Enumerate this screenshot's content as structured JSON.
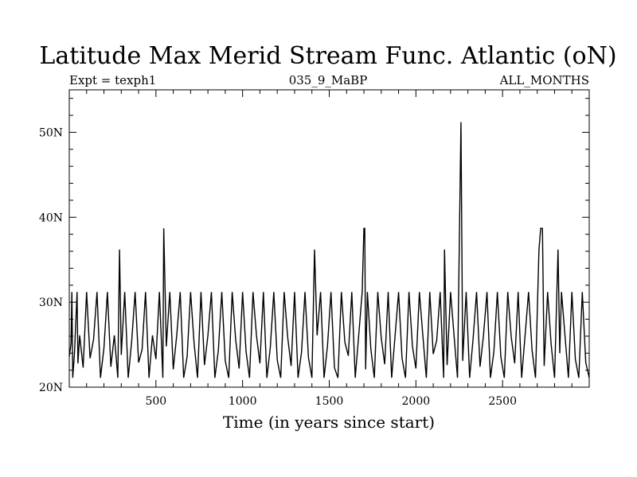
{
  "chart_data": {
    "type": "line",
    "title": "Latitude Max Merid Stream Func. Atlantic (oN)",
    "subtitle_left": "Expt = texph1",
    "subtitle_center": "035_9_MaBP",
    "subtitle_right": "ALL_MONTHS",
    "xlabel": "Time (in years since start)",
    "ylabel": "",
    "xlim": [
      0,
      3000
    ],
    "ylim": [
      20,
      55
    ],
    "xticks": [
      500,
      1000,
      1500,
      2000,
      2500
    ],
    "xtick_labels": [
      "500",
      "1000",
      "1500",
      "2000",
      "2500"
    ],
    "yticks": [
      20,
      30,
      40,
      50
    ],
    "ytick_labels": [
      "20N",
      "30N",
      "40N",
      "50N"
    ],
    "grid": false,
    "line_color": "#000000",
    "series": [
      {
        "name": "",
        "x": [
          0,
          10,
          15,
          20,
          30,
          45,
          50,
          60,
          80,
          100,
          120,
          140,
          160,
          180,
          200,
          220,
          240,
          260,
          280,
          290,
          300,
          320,
          340,
          360,
          380,
          400,
          420,
          440,
          460,
          480,
          500,
          520,
          540,
          545,
          560,
          580,
          600,
          620,
          640,
          660,
          680,
          700,
          720,
          740,
          760,
          780,
          800,
          820,
          840,
          860,
          880,
          900,
          920,
          940,
          960,
          980,
          1000,
          1020,
          1040,
          1060,
          1080,
          1100,
          1120,
          1140,
          1160,
          1180,
          1200,
          1220,
          1240,
          1260,
          1280,
          1300,
          1320,
          1340,
          1360,
          1380,
          1400,
          1415,
          1430,
          1450,
          1470,
          1490,
          1510,
          1530,
          1550,
          1570,
          1590,
          1610,
          1630,
          1650,
          1670,
          1690,
          1700,
          1705,
          1710,
          1720,
          1740,
          1760,
          1780,
          1800,
          1820,
          1840,
          1860,
          1880,
          1900,
          1920,
          1940,
          1960,
          1980,
          2000,
          2020,
          2040,
          2060,
          2080,
          2100,
          2120,
          2140,
          2160,
          2165,
          2180,
          2200,
          2220,
          2240,
          2250,
          2260,
          2270,
          2290,
          2310,
          2330,
          2350,
          2370,
          2390,
          2410,
          2430,
          2450,
          2470,
          2490,
          2510,
          2530,
          2550,
          2570,
          2590,
          2610,
          2630,
          2650,
          2670,
          2690,
          2710,
          2720,
          2730,
          2740,
          2760,
          2780,
          2800,
          2820,
          2830,
          2840,
          2860,
          2880,
          2900,
          2920,
          2940,
          2960,
          2980,
          3000
        ],
        "values": [
          23.6,
          25.1,
          31.2,
          21.1,
          24.0,
          31.2,
          22.8,
          26.1,
          22.3,
          31.2,
          23.4,
          25.6,
          31.2,
          21.1,
          24.6,
          31.2,
          22.4,
          26.1,
          21.1,
          36.2,
          23.8,
          31.2,
          21.1,
          25.4,
          31.2,
          22.9,
          24.4,
          31.2,
          21.1,
          26.1,
          23.3,
          31.2,
          21.1,
          38.7,
          24.8,
          31.2,
          22.1,
          26.1,
          31.2,
          21.1,
          23.6,
          31.2,
          25.2,
          21.1,
          31.2,
          22.6,
          26.1,
          31.2,
          21.1,
          24.3,
          31.2,
          23.1,
          21.1,
          31.2,
          25.6,
          22.2,
          31.2,
          24.2,
          21.1,
          31.2,
          26.1,
          22.8,
          31.2,
          21.1,
          24.7,
          31.2,
          23.2,
          21.1,
          31.2,
          25.9,
          22.5,
          31.2,
          21.1,
          24.1,
          31.2,
          23.5,
          21.1,
          36.2,
          26.1,
          31.2,
          21.1,
          24.9,
          31.2,
          22.3,
          21.1,
          31.2,
          25.3,
          23.7,
          31.2,
          21.1,
          26.1,
          31.2,
          38.7,
          38.7,
          22.1,
          31.2,
          24.5,
          21.1,
          31.2,
          25.8,
          22.7,
          31.2,
          21.1,
          26.1,
          31.2,
          23.4,
          21.1,
          31.2,
          24.8,
          22.2,
          31.2,
          26.1,
          21.1,
          31.2,
          23.9,
          25.5,
          31.2,
          21.1,
          36.2,
          22.6,
          31.2,
          26.1,
          21.1,
          36.2,
          51.2,
          23.1,
          31.2,
          21.1,
          25.7,
          31.2,
          22.4,
          26.1,
          31.2,
          21.1,
          24.2,
          31.2,
          23.6,
          21.1,
          31.2,
          25.9,
          22.8,
          31.2,
          21.1,
          26.1,
          31.2,
          24.4,
          21.1,
          36.2,
          38.7,
          38.7,
          22.5,
          31.2,
          25.1,
          21.1,
          36.2,
          24.0,
          31.2,
          26.1,
          21.1,
          31.2,
          23.3,
          21.1,
          31.2,
          22.9,
          21.1
        ]
      }
    ]
  }
}
